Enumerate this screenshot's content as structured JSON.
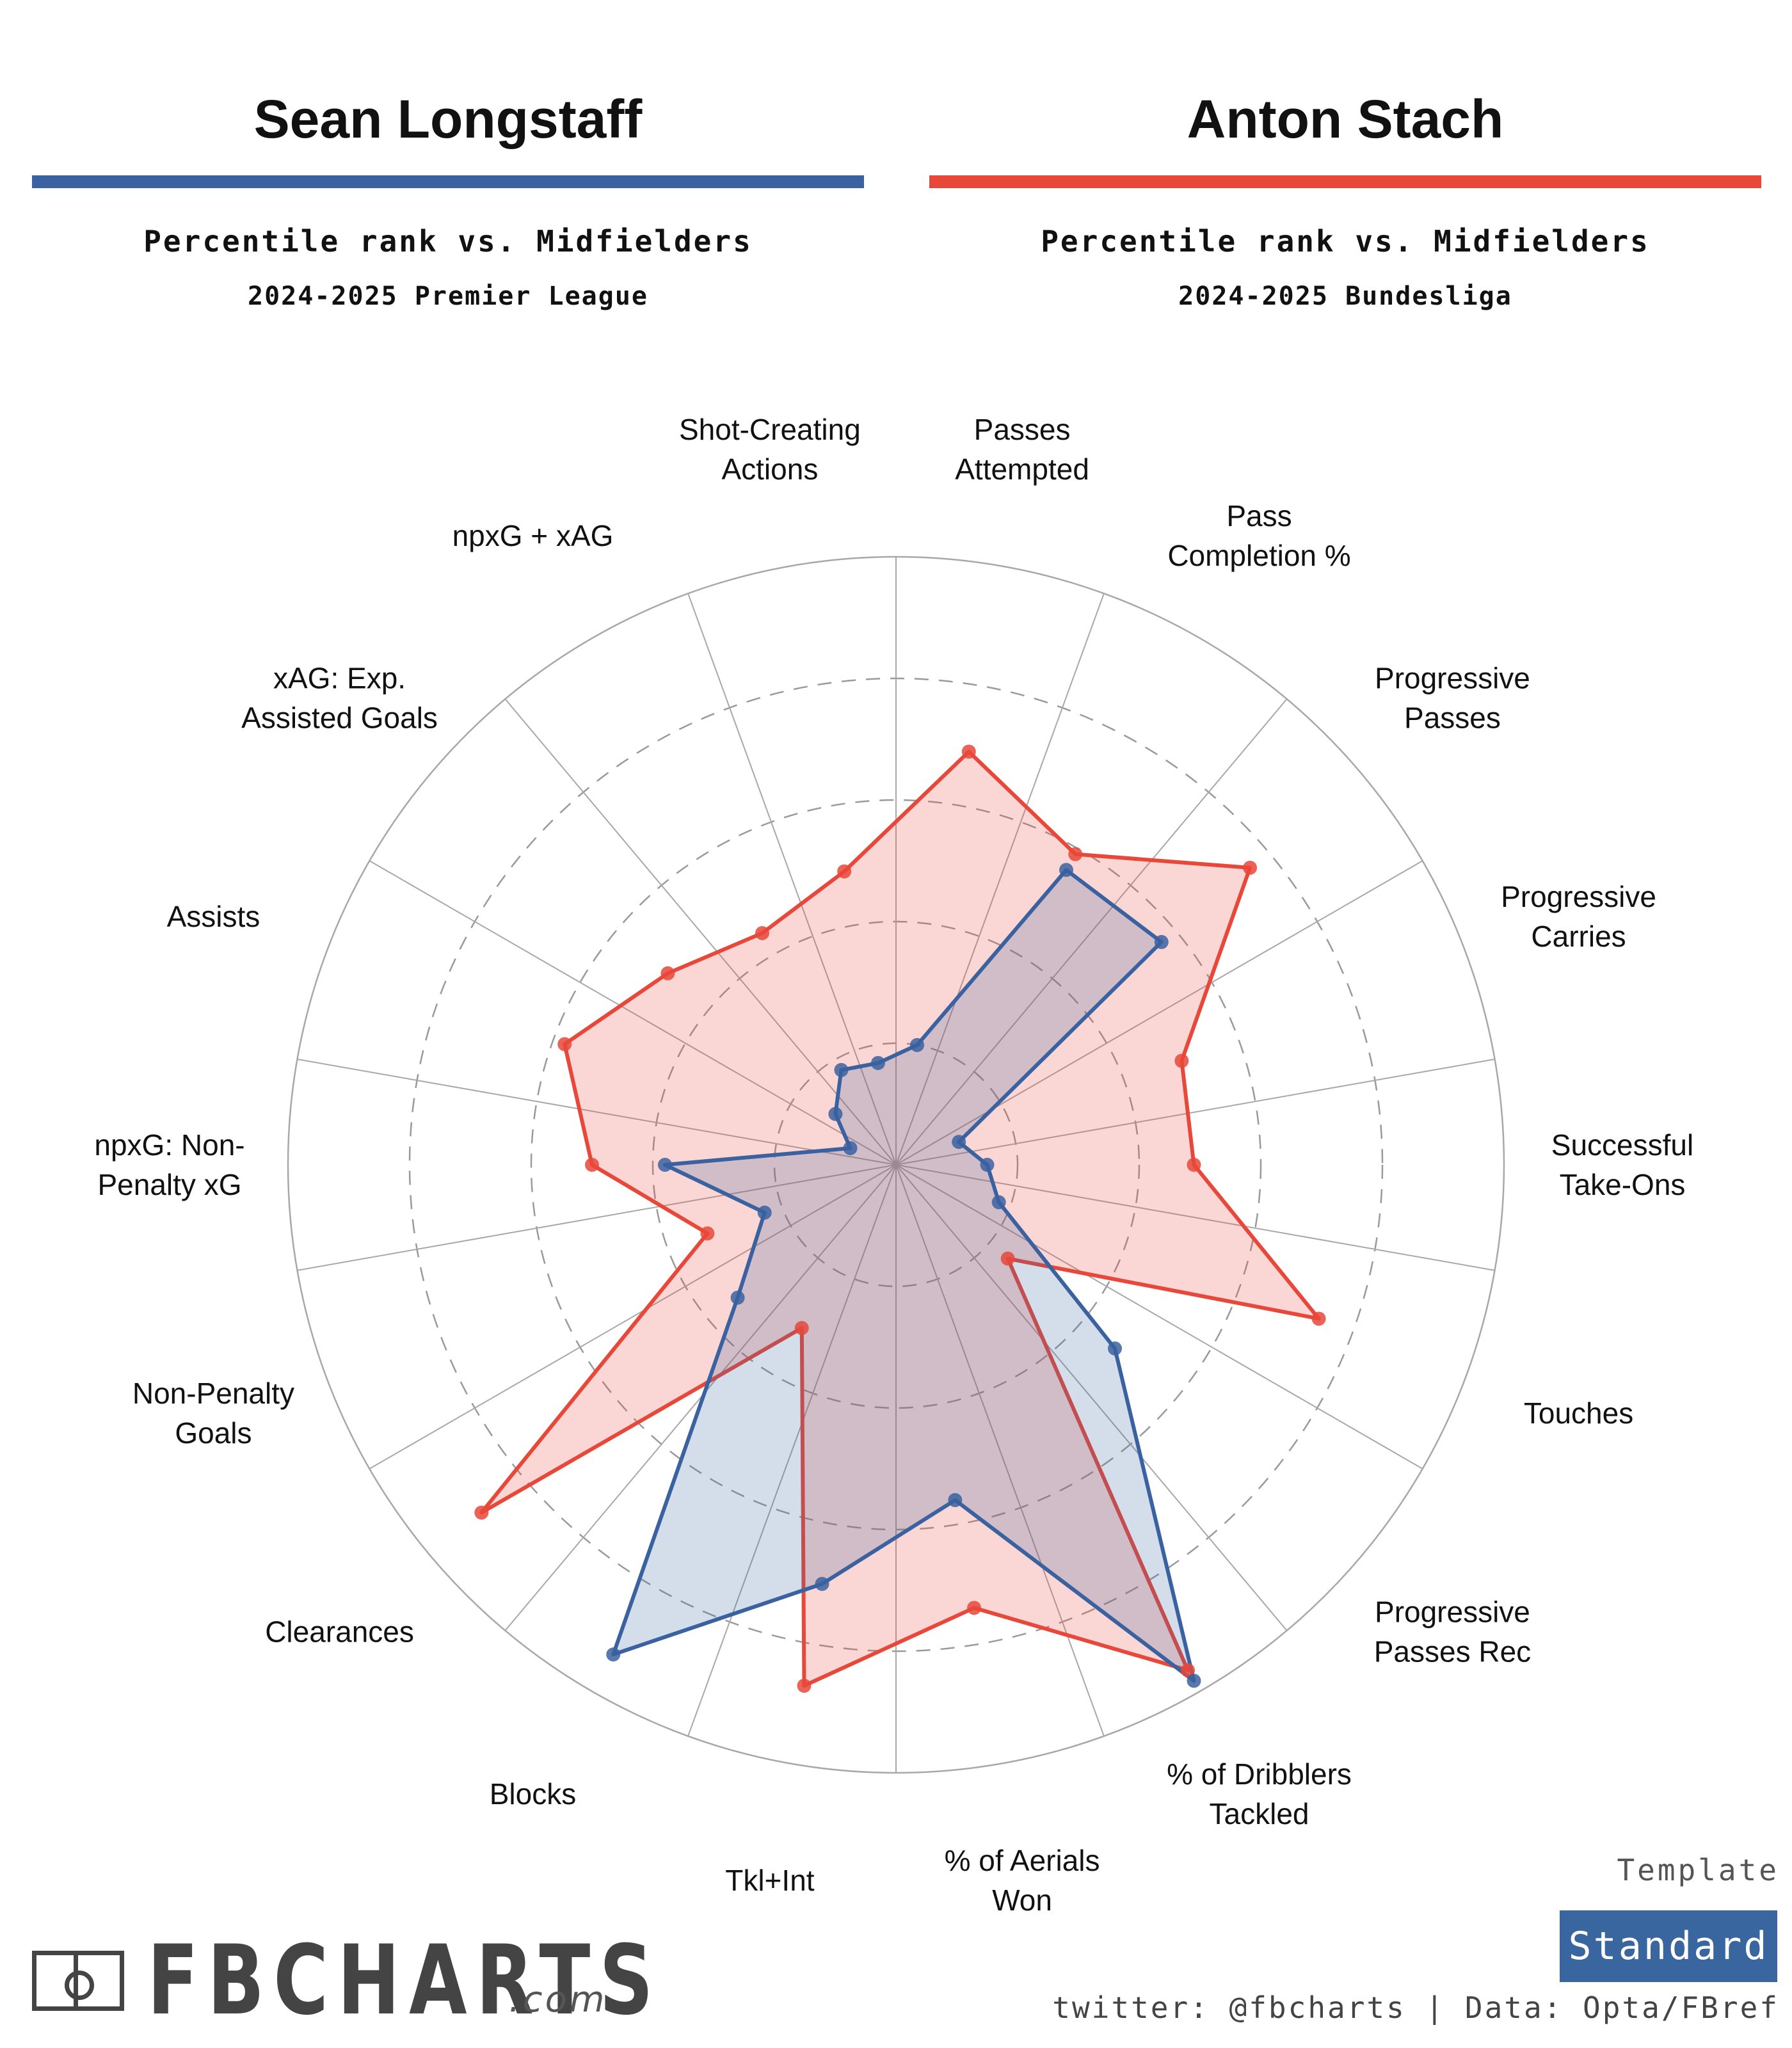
{
  "header": {
    "left": {
      "name": "Sean Longstaff",
      "subtitle": "Percentile rank vs. Midfielders",
      "season": "2024-2025 Premier League",
      "color": "#3a62a0"
    },
    "right": {
      "name": "Anton Stach",
      "subtitle": "Percentile rank vs. Midfielders",
      "season": "2024-2025 Bundesliga",
      "color": "#e8483a"
    }
  },
  "chart_data": {
    "type": "radar",
    "title": "",
    "axis_range": [
      0,
      100
    ],
    "grid_rings": [
      20,
      40,
      60,
      80
    ],
    "categories": [
      "Passes Attempted",
      "Pass Completion %",
      "Progressive Passes",
      "Progressive Carries",
      "Successful Take-Ons",
      "Touches",
      "Progressive Passes Rec",
      "% of Dribblers Tackled",
      "% of Aerials Won",
      "Tkl+Int",
      "Blocks",
      "Clearances",
      "Non-Penalty Goals",
      "npxG: Non-Penalty xG",
      "Assists",
      "xAG: Exp. Assisted Goals",
      "npxG + xAG",
      "Shot-Creating Actions"
    ],
    "label_lines": [
      [
        "Passes",
        "Attempted"
      ],
      [
        "Pass",
        "Completion %"
      ],
      [
        "Progressive",
        "Passes"
      ],
      [
        "Progressive",
        "Carries"
      ],
      [
        "Successful",
        "Take-Ons"
      ],
      [
        "Touches"
      ],
      [
        "Progressive",
        "Passes Rec"
      ],
      [
        "% of Dribblers",
        "Tackled"
      ],
      [
        "% of Aerials",
        "Won"
      ],
      [
        "Tkl+Int"
      ],
      [
        "Blocks"
      ],
      [
        "Clearances"
      ],
      [
        "Non-Penalty",
        "Goals"
      ],
      [
        "npxG: Non-",
        "Penalty xG"
      ],
      [
        "Assists"
      ],
      [
        "xAG: Exp.",
        "Assisted Goals"
      ],
      [
        "npxG + xAG"
      ],
      [
        "Shot-Creating",
        "Actions"
      ]
    ],
    "series": [
      {
        "name": "Sean Longstaff",
        "color": "#3a62a0",
        "values": [
          20,
          56,
          57,
          11,
          15,
          18,
          47,
          98,
          56,
          70,
          93,
          34,
          23,
          38,
          8,
          13,
          18,
          17
        ]
      },
      {
        "name": "Anton Stach",
        "color": "#e8483a",
        "values": [
          69,
          59,
          76,
          50,
          49,
          74,
          24,
          96,
          74,
          87,
          31,
          89,
          33,
          50,
          58,
          49,
          44,
          49
        ]
      }
    ]
  },
  "footer": {
    "template_label": "Template",
    "template_value": "Standard",
    "credits": "twitter: @fbcharts | Data: Opta/FBref",
    "logo_text": "FBCHARTS",
    "logo_domain": ".com"
  }
}
